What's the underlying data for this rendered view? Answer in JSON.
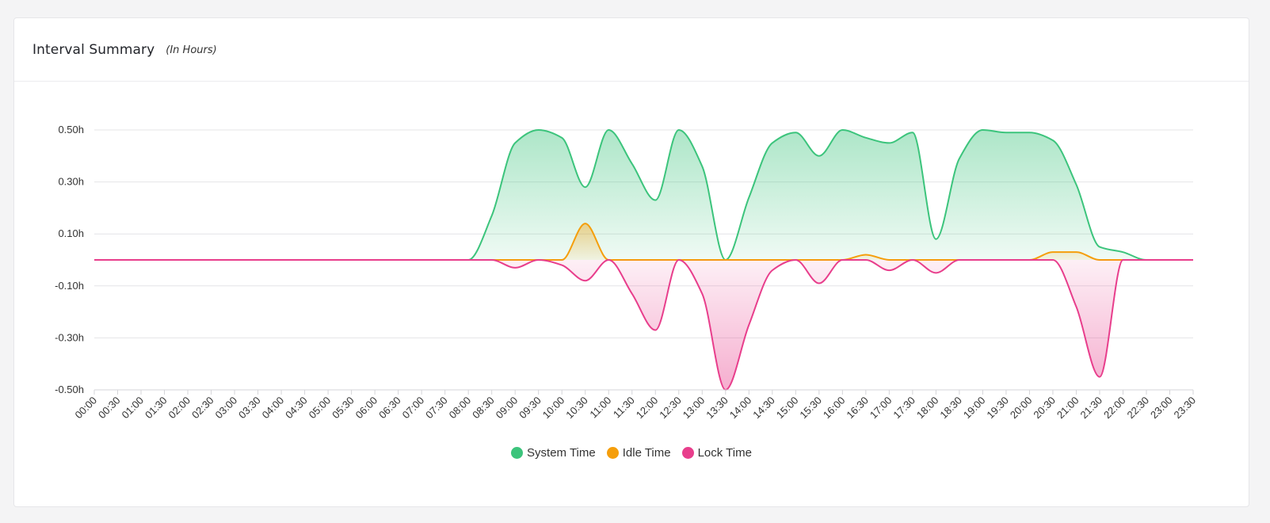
{
  "header": {
    "title": "Interval Summary",
    "subtitle": "(In Hours)"
  },
  "chart_data": {
    "type": "area",
    "title": "Interval Summary",
    "ylim": [
      -0.5,
      0.5
    ],
    "yticks": [
      0.5,
      0.3,
      0.1,
      -0.1,
      -0.3,
      -0.5
    ],
    "ytick_labels": [
      "0.50h",
      "0.30h",
      "0.10h",
      "-0.10h",
      "-0.30h",
      "-0.50h"
    ],
    "grid": true,
    "legend_position": "bottom-center",
    "categories": [
      "00:00",
      "00:30",
      "01:00",
      "01:30",
      "02:00",
      "02:30",
      "03:00",
      "03:30",
      "04:00",
      "04:30",
      "05:00",
      "05:30",
      "06:00",
      "06:30",
      "07:00",
      "07:30",
      "08:00",
      "08:30",
      "09:00",
      "09:30",
      "10:00",
      "10:30",
      "11:00",
      "11:30",
      "12:00",
      "12:30",
      "13:00",
      "13:30",
      "14:00",
      "14:30",
      "15:00",
      "15:30",
      "16:00",
      "16:30",
      "17:00",
      "17:30",
      "18:00",
      "18:30",
      "19:00",
      "19:30",
      "20:00",
      "20:30",
      "21:00",
      "21:30",
      "22:00",
      "22:30",
      "23:00",
      "23:30"
    ],
    "series": [
      {
        "name": "System Time",
        "color": "#3cc47c",
        "values": [
          0,
          0,
          0,
          0,
          0,
          0,
          0,
          0,
          0,
          0,
          0,
          0,
          0,
          0,
          0,
          0,
          0,
          0.17,
          0.45,
          0.5,
          0.47,
          0.28,
          0.5,
          0.37,
          0.23,
          0.5,
          0.36,
          0,
          0.24,
          0.45,
          0.49,
          0.4,
          0.5,
          0.47,
          0.45,
          0.49,
          0.08,
          0.39,
          0.5,
          0.49,
          0.49,
          0.46,
          0.29,
          0.05,
          0.03,
          0,
          0,
          0
        ]
      },
      {
        "name": "Idle Time",
        "color": "#f59e0b",
        "values": [
          0,
          0,
          0,
          0,
          0,
          0,
          0,
          0,
          0,
          0,
          0,
          0,
          0,
          0,
          0,
          0,
          0,
          0,
          0,
          0,
          0,
          0.14,
          0,
          0,
          0,
          0,
          0,
          0,
          0,
          0,
          0,
          0,
          0,
          0.02,
          0,
          0,
          0,
          0,
          0,
          0,
          0,
          0.03,
          0.03,
          0,
          0,
          0,
          0,
          0
        ]
      },
      {
        "name": "Lock Time",
        "color": "#e83e8c",
        "values": [
          0,
          0,
          0,
          0,
          0,
          0,
          0,
          0,
          0,
          0,
          0,
          0,
          0,
          0,
          0,
          0,
          0,
          0,
          -0.03,
          0,
          -0.02,
          -0.08,
          0,
          -0.13,
          -0.27,
          0,
          -0.13,
          -0.5,
          -0.25,
          -0.04,
          0,
          -0.09,
          0,
          0,
          -0.04,
          0,
          -0.05,
          0,
          0,
          0,
          0,
          0,
          -0.18,
          -0.45,
          0,
          0,
          0,
          0
        ]
      }
    ]
  }
}
